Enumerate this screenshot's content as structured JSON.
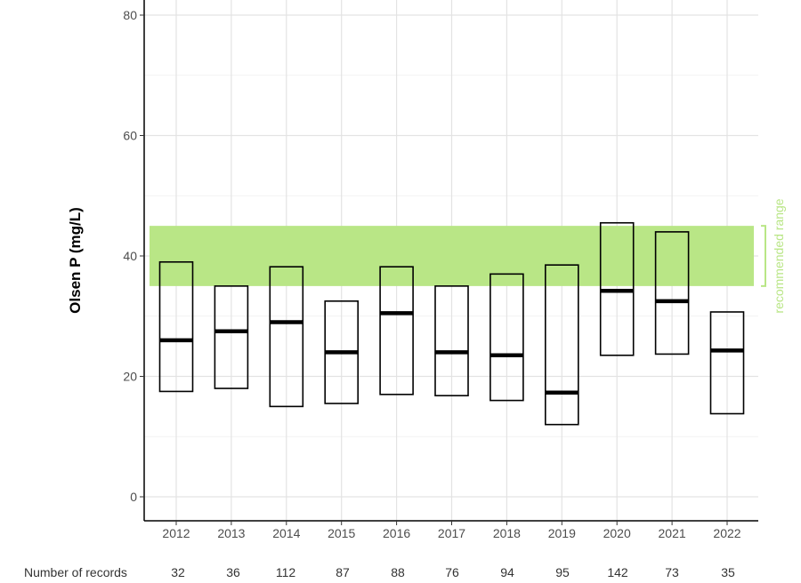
{
  "chart_data": {
    "type": "box",
    "ylabel": "Olsen P (mg/L)",
    "ylim": [
      -3,
      83
    ],
    "yticks": [
      0,
      20,
      40,
      60,
      80
    ],
    "grid": true,
    "categories": [
      "2012",
      "2013",
      "2014",
      "2015",
      "2016",
      "2017",
      "2018",
      "2019",
      "2020",
      "2021",
      "2022"
    ],
    "boxes": [
      {
        "q1": 17.5,
        "median": 26,
        "q3": 39
      },
      {
        "q1": 18,
        "median": 27.5,
        "q3": 35
      },
      {
        "q1": 15,
        "median": 29,
        "q3": 38.2
      },
      {
        "q1": 15.5,
        "median": 24,
        "q3": 32.5
      },
      {
        "q1": 17,
        "median": 30.5,
        "q3": 38.2
      },
      {
        "q1": 16.8,
        "median": 24,
        "q3": 35
      },
      {
        "q1": 16,
        "median": 23.5,
        "q3": 37
      },
      {
        "q1": 12,
        "median": 17.3,
        "q3": 38.5
      },
      {
        "q1": 23.5,
        "median": 34.2,
        "q3": 45.5
      },
      {
        "q1": 23.7,
        "median": 32.5,
        "q3": 44
      },
      {
        "q1": 13.8,
        "median": 24.3,
        "q3": 30.7
      }
    ],
    "recommended_range": {
      "low": 35,
      "high": 45,
      "label": "recommended range",
      "color": "#b9e686"
    },
    "records_label": "Number of records",
    "records": [
      32,
      36,
      112,
      87,
      88,
      76,
      94,
      95,
      142,
      73,
      35
    ]
  }
}
